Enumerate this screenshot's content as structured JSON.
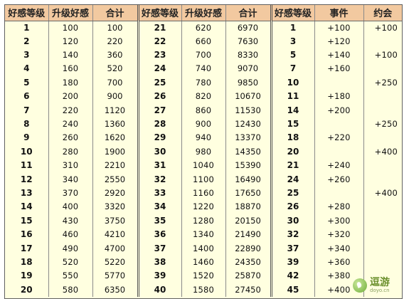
{
  "headers": [
    "好感等级",
    "升级好感",
    "合计",
    "好感等级",
    "升级好感",
    "合计",
    "好感等级",
    "事件",
    "约会"
  ],
  "block1": [
    [
      "1",
      "100",
      "100"
    ],
    [
      "2",
      "120",
      "220"
    ],
    [
      "3",
      "140",
      "360"
    ],
    [
      "4",
      "160",
      "520"
    ],
    [
      "5",
      "180",
      "700"
    ],
    [
      "6",
      "200",
      "900"
    ],
    [
      "7",
      "220",
      "1120"
    ],
    [
      "8",
      "240",
      "1360"
    ],
    [
      "9",
      "260",
      "1620"
    ],
    [
      "10",
      "280",
      "1900"
    ],
    [
      "11",
      "310",
      "2210"
    ],
    [
      "12",
      "340",
      "2550"
    ],
    [
      "13",
      "370",
      "2920"
    ],
    [
      "14",
      "400",
      "3320"
    ],
    [
      "15",
      "430",
      "3750"
    ],
    [
      "16",
      "460",
      "4210"
    ],
    [
      "17",
      "490",
      "4700"
    ],
    [
      "18",
      "520",
      "5220"
    ],
    [
      "19",
      "550",
      "5770"
    ],
    [
      "20",
      "580",
      "6350"
    ]
  ],
  "block2": [
    [
      "21",
      "620",
      "6970"
    ],
    [
      "22",
      "660",
      "7630"
    ],
    [
      "23",
      "700",
      "8330"
    ],
    [
      "24",
      "740",
      "9070"
    ],
    [
      "25",
      "780",
      "9850"
    ],
    [
      "26",
      "820",
      "10670"
    ],
    [
      "27",
      "860",
      "11530"
    ],
    [
      "28",
      "900",
      "12430"
    ],
    [
      "29",
      "940",
      "13370"
    ],
    [
      "30",
      "980",
      "14350"
    ],
    [
      "31",
      "1040",
      "15390"
    ],
    [
      "32",
      "1100",
      "16490"
    ],
    [
      "33",
      "1160",
      "17650"
    ],
    [
      "34",
      "1220",
      "18870"
    ],
    [
      "35",
      "1280",
      "20150"
    ],
    [
      "36",
      "1340",
      "21490"
    ],
    [
      "37",
      "1400",
      "22890"
    ],
    [
      "38",
      "1460",
      "24350"
    ],
    [
      "39",
      "1520",
      "25870"
    ],
    [
      "40",
      "1580",
      "27450"
    ]
  ],
  "block3": [
    [
      "1",
      "+100",
      "+100"
    ],
    [
      "3",
      "+120",
      ""
    ],
    [
      "5",
      "+140",
      "+100"
    ],
    [
      "7",
      "+160",
      ""
    ],
    [
      "10",
      "",
      "+250"
    ],
    [
      "11",
      "+180",
      ""
    ],
    [
      "14",
      "+200",
      ""
    ],
    [
      "15",
      "",
      "+250"
    ],
    [
      "18",
      "+220",
      ""
    ],
    [
      "20",
      "",
      "+400"
    ],
    [
      "21",
      "+240",
      ""
    ],
    [
      "24",
      "+260",
      ""
    ],
    [
      "25",
      "",
      "+400"
    ],
    [
      "26",
      "+280",
      ""
    ],
    [
      "30",
      "+300",
      ""
    ],
    [
      "32",
      "+320",
      ""
    ],
    [
      "37",
      "+340",
      ""
    ],
    [
      "39",
      "+360",
      ""
    ],
    [
      "42",
      "+380",
      ""
    ],
    [
      "45",
      "+400",
      ""
    ]
  ],
  "watermark": {
    "name": "逗游",
    "url": "doyo.cn"
  }
}
